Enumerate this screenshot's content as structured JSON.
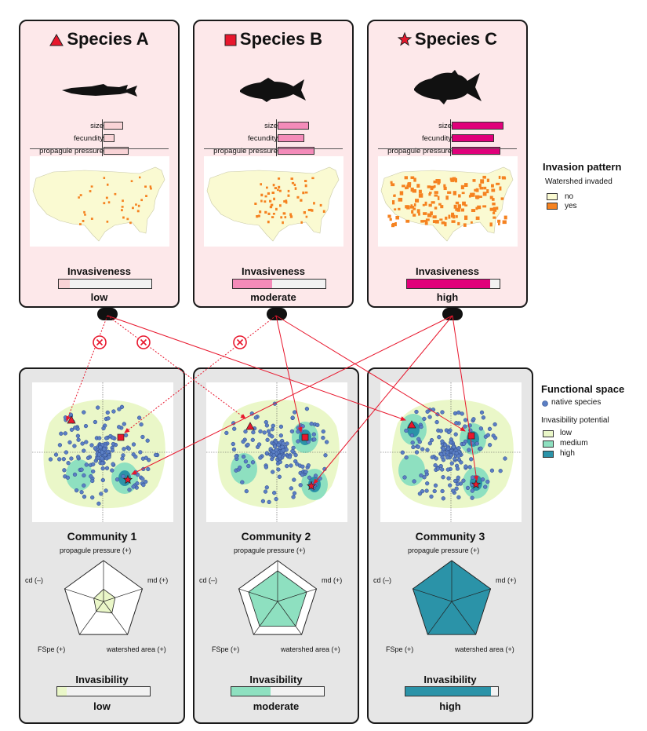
{
  "species": [
    {
      "name": "Species A",
      "marker": "triangle-icon",
      "invasiveness_label": "Invasiveness",
      "invasiveness": "low",
      "invasiveness_level": 0.12,
      "traits": [
        {
          "label": "size",
          "value": 0.4
        },
        {
          "label": "fecundity",
          "value": 0.22
        },
        {
          "label": "propagule pressure",
          "value": 0.5
        }
      ],
      "map_density": 0.15
    },
    {
      "name": "Species B",
      "marker": "square-icon",
      "invasiveness_label": "Invasiveness",
      "invasiveness": "moderate",
      "invasiveness_level": 0.42,
      "traits": [
        {
          "label": "size",
          "value": 0.6
        },
        {
          "label": "fecundity",
          "value": 0.5
        },
        {
          "label": "propagule pressure",
          "value": 0.7
        }
      ],
      "map_density": 0.35
    },
    {
      "name": "Species C",
      "marker": "star-icon",
      "invasiveness_label": "Invasiveness",
      "invasiveness": "high",
      "invasiveness_level": 0.9,
      "traits": [
        {
          "label": "size",
          "value": 1.0
        },
        {
          "label": "fecundity",
          "value": 0.82
        },
        {
          "label": "propagule pressure",
          "value": 0.95
        }
      ],
      "map_density": 1.0
    }
  ],
  "communities": [
    {
      "name": "Community 1",
      "invasibility_label": "Invasibility",
      "invasibility": "low",
      "invasibility_level": 0.1,
      "radar": [
        0.3,
        0.3,
        0.35,
        0.3,
        0.25
      ]
    },
    {
      "name": "Community 2",
      "invasibility_label": "Invasibility",
      "invasibility": "moderate",
      "invasibility_level": 0.42,
      "radar": [
        0.75,
        0.75,
        0.75,
        0.75,
        0.75
      ]
    },
    {
      "name": "Community 3",
      "invasibility_label": "Invasibility",
      "invasibility": "high",
      "invasibility_level": 0.92,
      "radar": [
        1.0,
        1.0,
        1.0,
        1.0,
        1.0
      ]
    }
  ],
  "radar_axes": {
    "top": "propagule pressure (+)",
    "left": "cd (–)",
    "right": "md (+)",
    "bottom_left": "FSpe (+)",
    "bottom_right": "watershed area (+)"
  },
  "legend_invasion": {
    "title": "Invasion pattern",
    "subtitle": "Watershed invaded",
    "items": [
      {
        "label": "no",
        "color": "#fafad2"
      },
      {
        "label": "yes",
        "color": "#f58220"
      }
    ]
  },
  "legend_functional": {
    "title": "Functional space",
    "native_label": "native species",
    "potential_title": "Invasibility potential",
    "items": [
      {
        "label": "low",
        "color": "#eaf7c8"
      },
      {
        "label": "medium",
        "color": "#8ee0c0"
      },
      {
        "label": "high",
        "color": "#2b93a8"
      }
    ]
  },
  "colors": {
    "species_a": "#f9d3d6",
    "species_b": "#f48bb9",
    "species_c": "#e0007a",
    "marker": "#e8172d",
    "native": "#5b7fc4",
    "comm_low": "#eaf7c8",
    "comm_med": "#8ee0c0",
    "comm_high": "#2b93a8"
  }
}
